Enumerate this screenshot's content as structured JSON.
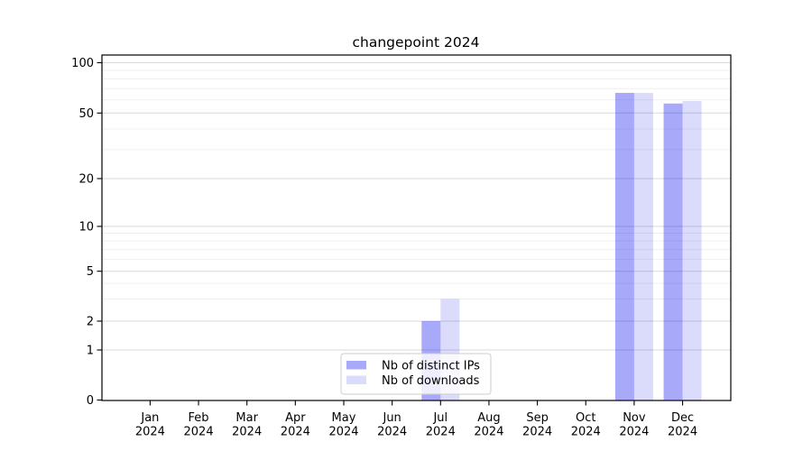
{
  "chart_data": {
    "type": "bar",
    "title": "changepoint 2024",
    "categories": [
      "Jan",
      "Feb",
      "Mar",
      "Apr",
      "May",
      "Jun",
      "Jul",
      "Aug",
      "Sep",
      "Oct",
      "Nov",
      "Dec"
    ],
    "x_year_label": "2024",
    "series": [
      {
        "name": "Nb of distinct IPs",
        "base_color": "#0a0af0",
        "alpha": 0.35,
        "perceived_color": "#a9a9f6",
        "values": [
          0,
          0,
          0,
          0,
          0,
          0,
          2,
          0,
          0,
          0,
          66,
          57
        ]
      },
      {
        "name": "Nb of downloads",
        "base_color": "#0a0ae6",
        "alpha": 0.145,
        "perceived_color": "#dbdbfa",
        "values": [
          0,
          0,
          0,
          0,
          0,
          0,
          3,
          0,
          0,
          0,
          66,
          59
        ]
      }
    ],
    "yaxis": {
      "scale": "symlog",
      "ticks": [
        0,
        1,
        2,
        5,
        10,
        20,
        50,
        100
      ],
      "minor_gridlines": [
        3,
        4,
        6,
        7,
        8,
        9,
        30,
        40,
        60,
        70,
        80,
        90
      ],
      "ylim": [
        0,
        115
      ]
    },
    "xlabel": "",
    "ylabel": "",
    "grid": true,
    "legend": {
      "position": "lower-center"
    },
    "colors": {
      "major_grid": "#d9d9d9",
      "minor_grid": "#efefef",
      "axis": "#000000",
      "text": "#000000",
      "legend_border": "#cccccc",
      "legend_bg": "rgba(255,255,255,0.8)"
    }
  }
}
